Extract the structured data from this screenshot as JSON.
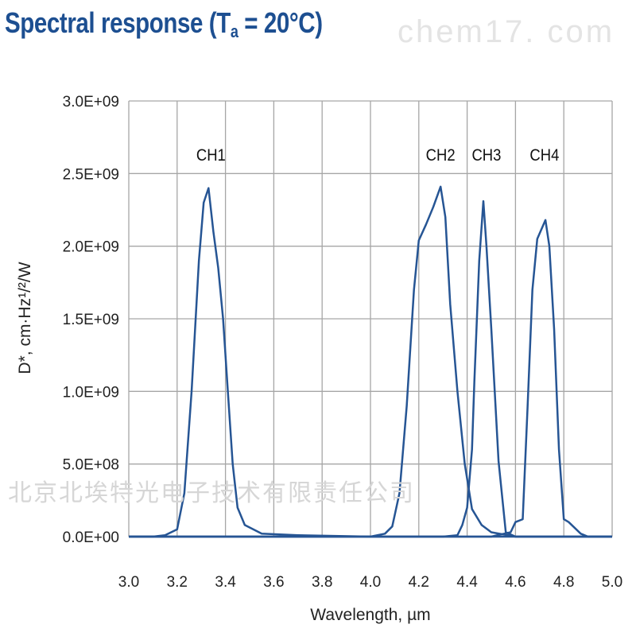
{
  "title": {
    "main": "Spectral response (T",
    "sub": "a",
    "rest": " = 20°C)"
  },
  "watermarks": {
    "site": "chem17. com",
    "company": "北京北埃特光电子技术有限责任公司"
  },
  "colors": {
    "line": "#265594",
    "grid": "#a6a6a6",
    "title": "#1d4f91"
  },
  "chart_data": {
    "type": "line",
    "title": "Spectral response (Ta = 20°C)",
    "xlabel": "Wavelength, µm",
    "ylabel": "D*, cm·Hz¹/²/W",
    "xlim": [
      3.0,
      5.0
    ],
    "ylim": [
      0,
      3000000000.0
    ],
    "grid": true,
    "xticks": [
      3.0,
      3.2,
      3.4,
      3.6,
      3.8,
      4.0,
      4.2,
      4.4,
      4.6,
      4.8,
      5.0
    ],
    "xtick_labels": [
      "3.0",
      "3.2",
      "3.4",
      "3.6",
      "3.8",
      "4.0",
      "4.2",
      "4.4",
      "4.6",
      "4.8",
      "5.0"
    ],
    "yticks": [
      0,
      500000000.0,
      1000000000.0,
      1500000000.0,
      2000000000.0,
      2500000000.0,
      3000000000.0
    ],
    "ytick_labels": [
      "0.0E+00",
      "5.0E+08",
      "1.0E+09",
      "1.5E+09",
      "2.0E+09",
      "2.5E+09",
      "3.0E+09"
    ],
    "series": [
      {
        "name": "CH1",
        "label_at": [
          3.34,
          2600000000.0
        ],
        "points": [
          [
            3.0,
            0
          ],
          [
            3.1,
            0
          ],
          [
            3.15,
            10000000.0
          ],
          [
            3.2,
            50000000.0
          ],
          [
            3.23,
            300000000.0
          ],
          [
            3.26,
            1000000000.0
          ],
          [
            3.29,
            1900000000.0
          ],
          [
            3.31,
            2300000000.0
          ],
          [
            3.33,
            2400000000.0
          ],
          [
            3.35,
            2100000000.0
          ],
          [
            3.37,
            1850000000.0
          ],
          [
            3.39,
            1500000000.0
          ],
          [
            3.41,
            1000000000.0
          ],
          [
            3.43,
            500000000.0
          ],
          [
            3.45,
            200000000.0
          ],
          [
            3.48,
            80000000.0
          ],
          [
            3.55,
            20000000.0
          ],
          [
            3.7,
            10000000.0
          ],
          [
            4.0,
            0
          ],
          [
            5.0,
            0
          ]
        ]
      },
      {
        "name": "CH2",
        "label_at": [
          4.29,
          2600000000.0
        ],
        "points": [
          [
            3.0,
            0
          ],
          [
            4.0,
            0
          ],
          [
            4.06,
            20000000.0
          ],
          [
            4.09,
            70000000.0
          ],
          [
            4.12,
            300000000.0
          ],
          [
            4.15,
            900000000.0
          ],
          [
            4.18,
            1700000000.0
          ],
          [
            4.2,
            2040000000.0
          ],
          [
            4.23,
            2150000000.0
          ],
          [
            4.26,
            2270000000.0
          ],
          [
            4.29,
            2410000000.0
          ],
          [
            4.31,
            2200000000.0
          ],
          [
            4.33,
            1600000000.0
          ],
          [
            4.36,
            1000000000.0
          ],
          [
            4.39,
            500000000.0
          ],
          [
            4.42,
            190000000.0
          ],
          [
            4.46,
            80000000.0
          ],
          [
            4.5,
            30000000.0
          ],
          [
            4.6,
            0
          ],
          [
            5.0,
            0
          ]
        ]
      },
      {
        "name": "CH3",
        "label_at": [
          4.48,
          2600000000.0
        ],
        "points": [
          [
            3.0,
            0
          ],
          [
            4.3,
            0
          ],
          [
            4.36,
            10000000.0
          ],
          [
            4.38,
            80000000.0
          ],
          [
            4.4,
            200000000.0
          ],
          [
            4.42,
            600000000.0
          ],
          [
            4.43,
            1070000000.0
          ],
          [
            4.45,
            1900000000.0
          ],
          [
            4.467,
            2310000000.0
          ],
          [
            4.48,
            2000000000.0
          ],
          [
            4.5,
            1430000000.0
          ],
          [
            4.53,
            520000000.0
          ],
          [
            4.56,
            30000000.0
          ],
          [
            4.6,
            0
          ],
          [
            5.0,
            0
          ]
        ]
      },
      {
        "name": "CH4",
        "label_at": [
          4.72,
          2600000000.0
        ],
        "points": [
          [
            3.0,
            0
          ],
          [
            4.5,
            0
          ],
          [
            4.58,
            30000000.0
          ],
          [
            4.6,
            100000000.0
          ],
          [
            4.63,
            120000000.0
          ],
          [
            4.65,
            890000000.0
          ],
          [
            4.67,
            1700000000.0
          ],
          [
            4.69,
            2050000000.0
          ],
          [
            4.724,
            2180000000.0
          ],
          [
            4.74,
            2000000000.0
          ],
          [
            4.76,
            1430000000.0
          ],
          [
            4.78,
            600000000.0
          ],
          [
            4.8,
            120000000.0
          ],
          [
            4.82,
            100000000.0
          ],
          [
            4.87,
            20000000.0
          ],
          [
            4.9,
            0
          ],
          [
            5.0,
            0
          ]
        ]
      }
    ]
  }
}
